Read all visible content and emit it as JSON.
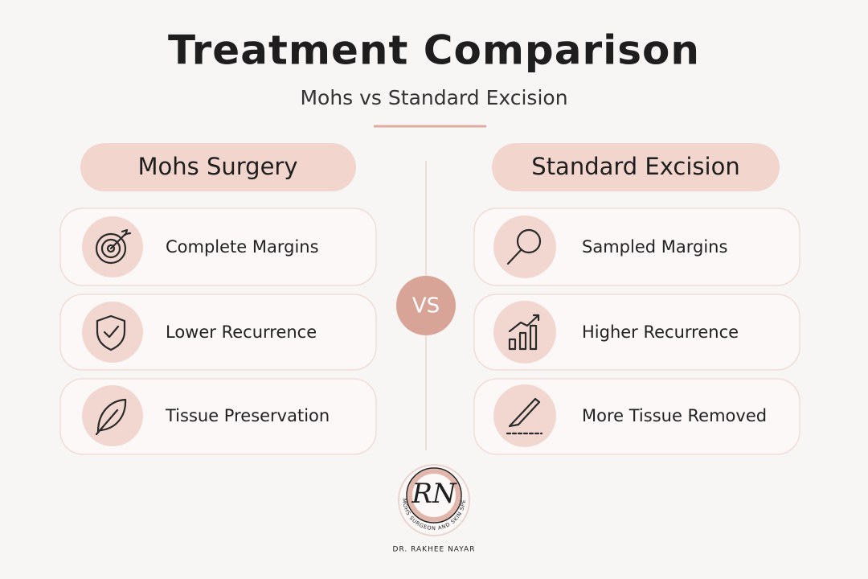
{
  "header": {
    "title": "Treatment Comparison",
    "subtitle": "Mohs vs Standard Excision"
  },
  "left": {
    "heading": "Mohs Surgery",
    "items": [
      "Complete Margins",
      "Lower Recurrence",
      "Tissue Preservation"
    ]
  },
  "right": {
    "heading": "Standard Excision",
    "items": [
      "Sampled Margins",
      "Higher Recurrence",
      "More Tissue Removed"
    ]
  },
  "vs": "VS",
  "logo": {
    "monogram": "RN",
    "tagline": "MOHS SURGEON AND SKIN SPECIALIST",
    "name": "DR. RAKHEE NAYAR"
  }
}
